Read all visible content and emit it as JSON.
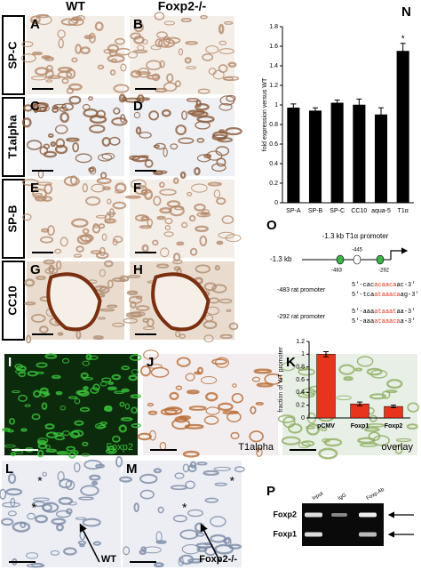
{
  "figure": {
    "columns": [
      "WT",
      "Foxp2-/-"
    ],
    "rows": [
      {
        "label": "SP-C",
        "panels": [
          "A",
          "B"
        ]
      },
      {
        "label": "T1alpha",
        "panels": [
          "C",
          "D"
        ]
      },
      {
        "label": "SP-B",
        "panels": [
          "E",
          "F"
        ]
      },
      {
        "label": "CC10",
        "panels": [
          "G",
          "H"
        ]
      }
    ],
    "lower_panels": [
      {
        "letter": "I",
        "caption": "Foxp2"
      },
      {
        "letter": "J",
        "caption": "T1alpha"
      },
      {
        "letter": "K",
        "caption": "overlay"
      },
      {
        "letter": "L",
        "caption": "WT"
      },
      {
        "letter": "M",
        "caption": "Foxp2-/-"
      }
    ],
    "asterisk": "*"
  },
  "chart_data": [
    {
      "type": "bar",
      "panel": "N",
      "y_label": "fold expression versus WT",
      "categories": [
        "SP-A",
        "SP-B",
        "SP-C",
        "CC10",
        "aqua-5",
        "T1α"
      ],
      "values": [
        0.97,
        0.94,
        1.02,
        1.0,
        0.9,
        1.55
      ],
      "errors": [
        0.04,
        0.03,
        0.03,
        0.06,
        0.07,
        0.08
      ],
      "color": "#000000",
      "annotation": "*",
      "ylim": [
        0,
        1.8
      ],
      "yticks": [
        0,
        0.2,
        0.4,
        0.6,
        0.8,
        1,
        1.2,
        1.4,
        1.6,
        1.8
      ]
    },
    {
      "type": "bar",
      "y_label": "fraction of WT promoter",
      "categories": [
        "pCMV",
        "Foxp1",
        "Foxp2"
      ],
      "values": [
        1.0,
        0.22,
        0.18
      ],
      "errors": [
        0.04,
        0.03,
        0.02
      ],
      "color": "#e8341c",
      "ylim": [
        0,
        1.2
      ],
      "yticks": [
        0,
        0.2,
        0.4,
        0.6,
        0.8,
        1,
        1.2
      ]
    }
  ],
  "promoter": {
    "panel": "O",
    "title": "-1.3 kb T1α promoter",
    "start": "-1.3 kb",
    "sites": [
      "-483",
      "-445",
      "-292"
    ],
    "sequences": [
      {
        "label": "-483 rat promoter",
        "lines": [
          [
            "5'-cac",
            "acaaca",
            "ac-3'"
          ],
          [
            "5'-tca",
            "ataaaca",
            "ag-3'"
          ]
        ]
      },
      {
        "label": "-292 rat promoter",
        "lines": [
          [
            "5'-aaa",
            "ataaat",
            "aa-3'"
          ],
          [
            "5'-aaa",
            "ataaaca",
            "a-3'"
          ]
        ]
      }
    ]
  },
  "gel": {
    "panel": "P",
    "lanes": [
      "input",
      "IgG",
      "Foxp Ab"
    ],
    "bands": [
      "Foxp2",
      "Foxp1"
    ]
  }
}
